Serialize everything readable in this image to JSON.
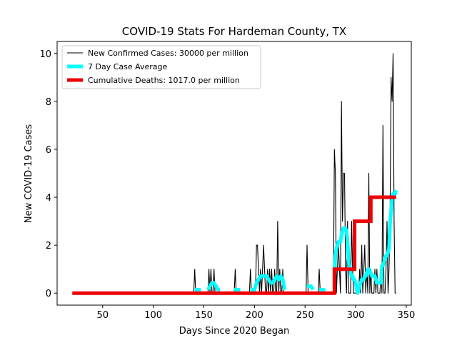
{
  "chart_data": {
    "type": "line",
    "title": "COVID-19 Stats For Hardeman County, TX",
    "xlabel": "Days Since 2020 Began",
    "ylabel": "New COVID-19 Cases",
    "xlim": [
      5,
      355
    ],
    "ylim": [
      -0.5,
      10.5
    ],
    "xticks": [
      50,
      100,
      150,
      200,
      250,
      300,
      350
    ],
    "yticks": [
      0,
      2,
      4,
      6,
      8,
      10
    ],
    "legend_position": "upper-left",
    "colors": {
      "daily": "#000000",
      "avg": "#00ffff",
      "deaths": "#ee0000"
    },
    "series": [
      {
        "name": "New Confirmed Cases: 30000 per million",
        "style": "thin-black",
        "x": [
          20,
          140,
          141,
          142,
          143,
          145,
          150,
          154,
          155,
          156,
          157,
          158,
          159,
          160,
          161,
          162,
          170,
          180,
          181,
          182,
          195,
          196,
          197,
          200,
          201,
          202,
          203,
          205,
          206,
          207,
          208,
          209,
          210,
          211,
          212,
          213,
          214,
          215,
          216,
          217,
          218,
          219,
          220,
          221,
          222,
          223,
          224,
          225,
          226,
          227,
          228,
          229,
          230,
          240,
          250,
          251,
          252,
          253,
          255,
          260,
          263,
          264,
          265,
          270,
          278,
          279,
          280,
          281,
          282,
          283,
          284,
          285,
          286,
          287,
          288,
          289,
          290,
          291,
          292,
          293,
          294,
          295,
          296,
          297,
          298,
          299,
          300,
          301,
          302,
          303,
          304,
          305,
          306,
          307,
          308,
          309,
          310,
          311,
          312,
          313,
          314,
          315,
          316,
          317,
          318,
          319,
          320,
          321,
          322,
          323,
          324,
          325,
          326,
          327,
          328,
          329,
          330,
          331,
          332,
          333,
          334,
          335,
          336,
          337,
          338,
          339,
          340
        ],
        "y": [
          0,
          0,
          1,
          0,
          0,
          0,
          0,
          0,
          1,
          0,
          1,
          0,
          0,
          1,
          0,
          0,
          0,
          0,
          1,
          0,
          0,
          1,
          0,
          0,
          0,
          2,
          2,
          0,
          1,
          0,
          1,
          2,
          1,
          0,
          0,
          1,
          0,
          1,
          0,
          1,
          0,
          0,
          1,
          0,
          0,
          3,
          0,
          1,
          0,
          0,
          1,
          0,
          0,
          0,
          0,
          0,
          2,
          0,
          0,
          0,
          0,
          1,
          0,
          0,
          0,
          6,
          5,
          0,
          1,
          2,
          1,
          0,
          8,
          3,
          5,
          5,
          1,
          0,
          3,
          0,
          0,
          0,
          3,
          1,
          0,
          0,
          0,
          0,
          0,
          0,
          1,
          0,
          2,
          0,
          1,
          2,
          0,
          1,
          0,
          5,
          0,
          1,
          0,
          0,
          0,
          1,
          0,
          1,
          0,
          0,
          0,
          1,
          0,
          7,
          0,
          0,
          1,
          3,
          0,
          1,
          3,
          9,
          8,
          10,
          3,
          0,
          0
        ]
      },
      {
        "name": "7 Day Case Average",
        "style": "thick-cyan",
        "segments": [
          {
            "x": [
              141,
              143,
              145,
              147
            ],
            "y": [
              0.14,
              0.14,
              0.14,
              0.14
            ]
          },
          {
            "x": [
              154,
              156,
              158,
              160,
              162,
              164,
              166
            ],
            "y": [
              0.14,
              0.29,
              0.43,
              0.43,
              0.29,
              0.14,
              0.14
            ]
          },
          {
            "x": [
              180,
              182,
              184,
              186
            ],
            "y": [
              0.14,
              0.14,
              0.14,
              0.14
            ]
          },
          {
            "x": [
              196,
              198,
              200,
              202,
              204,
              206,
              208,
              210,
              212,
              214,
              216,
              218,
              220,
              222,
              224,
              226,
              228,
              230
            ],
            "y": [
              0.14,
              0.14,
              0.14,
              0.43,
              0.57,
              0.71,
              0.71,
              0.71,
              0.71,
              0.57,
              0.43,
              0.43,
              0.57,
              0.71,
              0.57,
              0.71,
              0.57,
              0.14
            ]
          },
          {
            "x": [
              252,
              254,
              256,
              258
            ],
            "y": [
              0.29,
              0.29,
              0.29,
              0.14
            ]
          },
          {
            "x": [
              264,
              266,
              268,
              270
            ],
            "y": [
              0.14,
              0.14,
              0.14,
              0.14
            ]
          },
          {
            "x": [
              279,
              280,
              281,
              282,
              283,
              284,
              285,
              286,
              287,
              288,
              289,
              290,
              291,
              292,
              293,
              294,
              295,
              296,
              297,
              298,
              299,
              300,
              301,
              302,
              303,
              304,
              305,
              306,
              307,
              308,
              309,
              310,
              311,
              312,
              313,
              314,
              315,
              316,
              317,
              318,
              319,
              320,
              321,
              322,
              323,
              324,
              325,
              326,
              327,
              328,
              329,
              330,
              331,
              332,
              333,
              334,
              335,
              336,
              337,
              338,
              339,
              340
            ],
            "y": [
              0.86,
              1.57,
              1.86,
              2.0,
              2.14,
              2.14,
              2.14,
              2.43,
              2.57,
              2.71,
              2.71,
              2.71,
              2.57,
              2.14,
              1.43,
              1.0,
              0.86,
              0.71,
              0.71,
              0.57,
              0.57,
              0.43,
              0.14,
              0.0,
              0.14,
              0.29,
              0.43,
              0.57,
              0.57,
              0.57,
              0.71,
              0.71,
              0.86,
              1.0,
              1.0,
              0.86,
              0.86,
              0.71,
              0.71,
              0.71,
              0.71,
              0.57,
              0.43,
              0.43,
              0.43,
              0.43,
              0.43,
              1.14,
              1.14,
              1.29,
              1.43,
              1.57,
              1.57,
              1.71,
              1.86,
              2.86,
              3.43,
              4.0,
              4.14,
              4.14,
              4.14,
              4.29
            ]
          }
        ]
      },
      {
        "name": "Cumulative Deaths: 1017.0 per million",
        "style": "thick-red",
        "x": [
          20,
          279,
          279,
          299,
          299,
          315,
          315,
          340
        ],
        "y": [
          0,
          0,
          1,
          1,
          3,
          3,
          4,
          4
        ]
      }
    ]
  }
}
